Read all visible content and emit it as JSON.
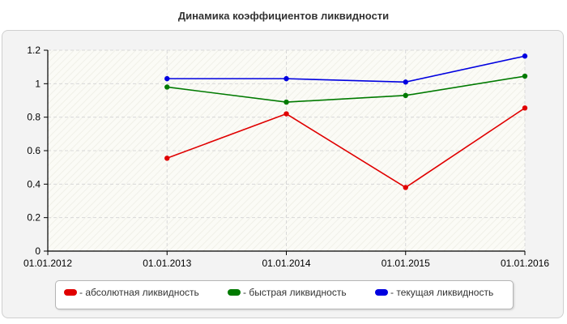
{
  "chart_data": {
    "type": "line",
    "title": "Динамика коэффициентов ликвидности",
    "x": [
      "01.01.2012",
      "01.01.2013",
      "01.01.2014",
      "01.01.2015",
      "01.01.2016"
    ],
    "ylim": [
      0,
      1.2
    ],
    "yticks": [
      "0",
      "0.2",
      "0.4",
      "0.6",
      "0.8",
      "1",
      "1.2"
    ],
    "grid": true,
    "legend_position": "bottom",
    "series": [
      {
        "name": "- абсолютная ликвидность",
        "color": "#e00000",
        "values": [
          null,
          0.555,
          0.82,
          0.38,
          0.855
        ]
      },
      {
        "name": "- быстрая ликвидность",
        "color": "#007a00",
        "values": [
          null,
          0.98,
          0.89,
          0.93,
          1.045
        ]
      },
      {
        "name": "- текущая ликвидность",
        "color": "#0000e0",
        "values": [
          null,
          1.03,
          1.03,
          1.01,
          1.165
        ]
      }
    ]
  }
}
